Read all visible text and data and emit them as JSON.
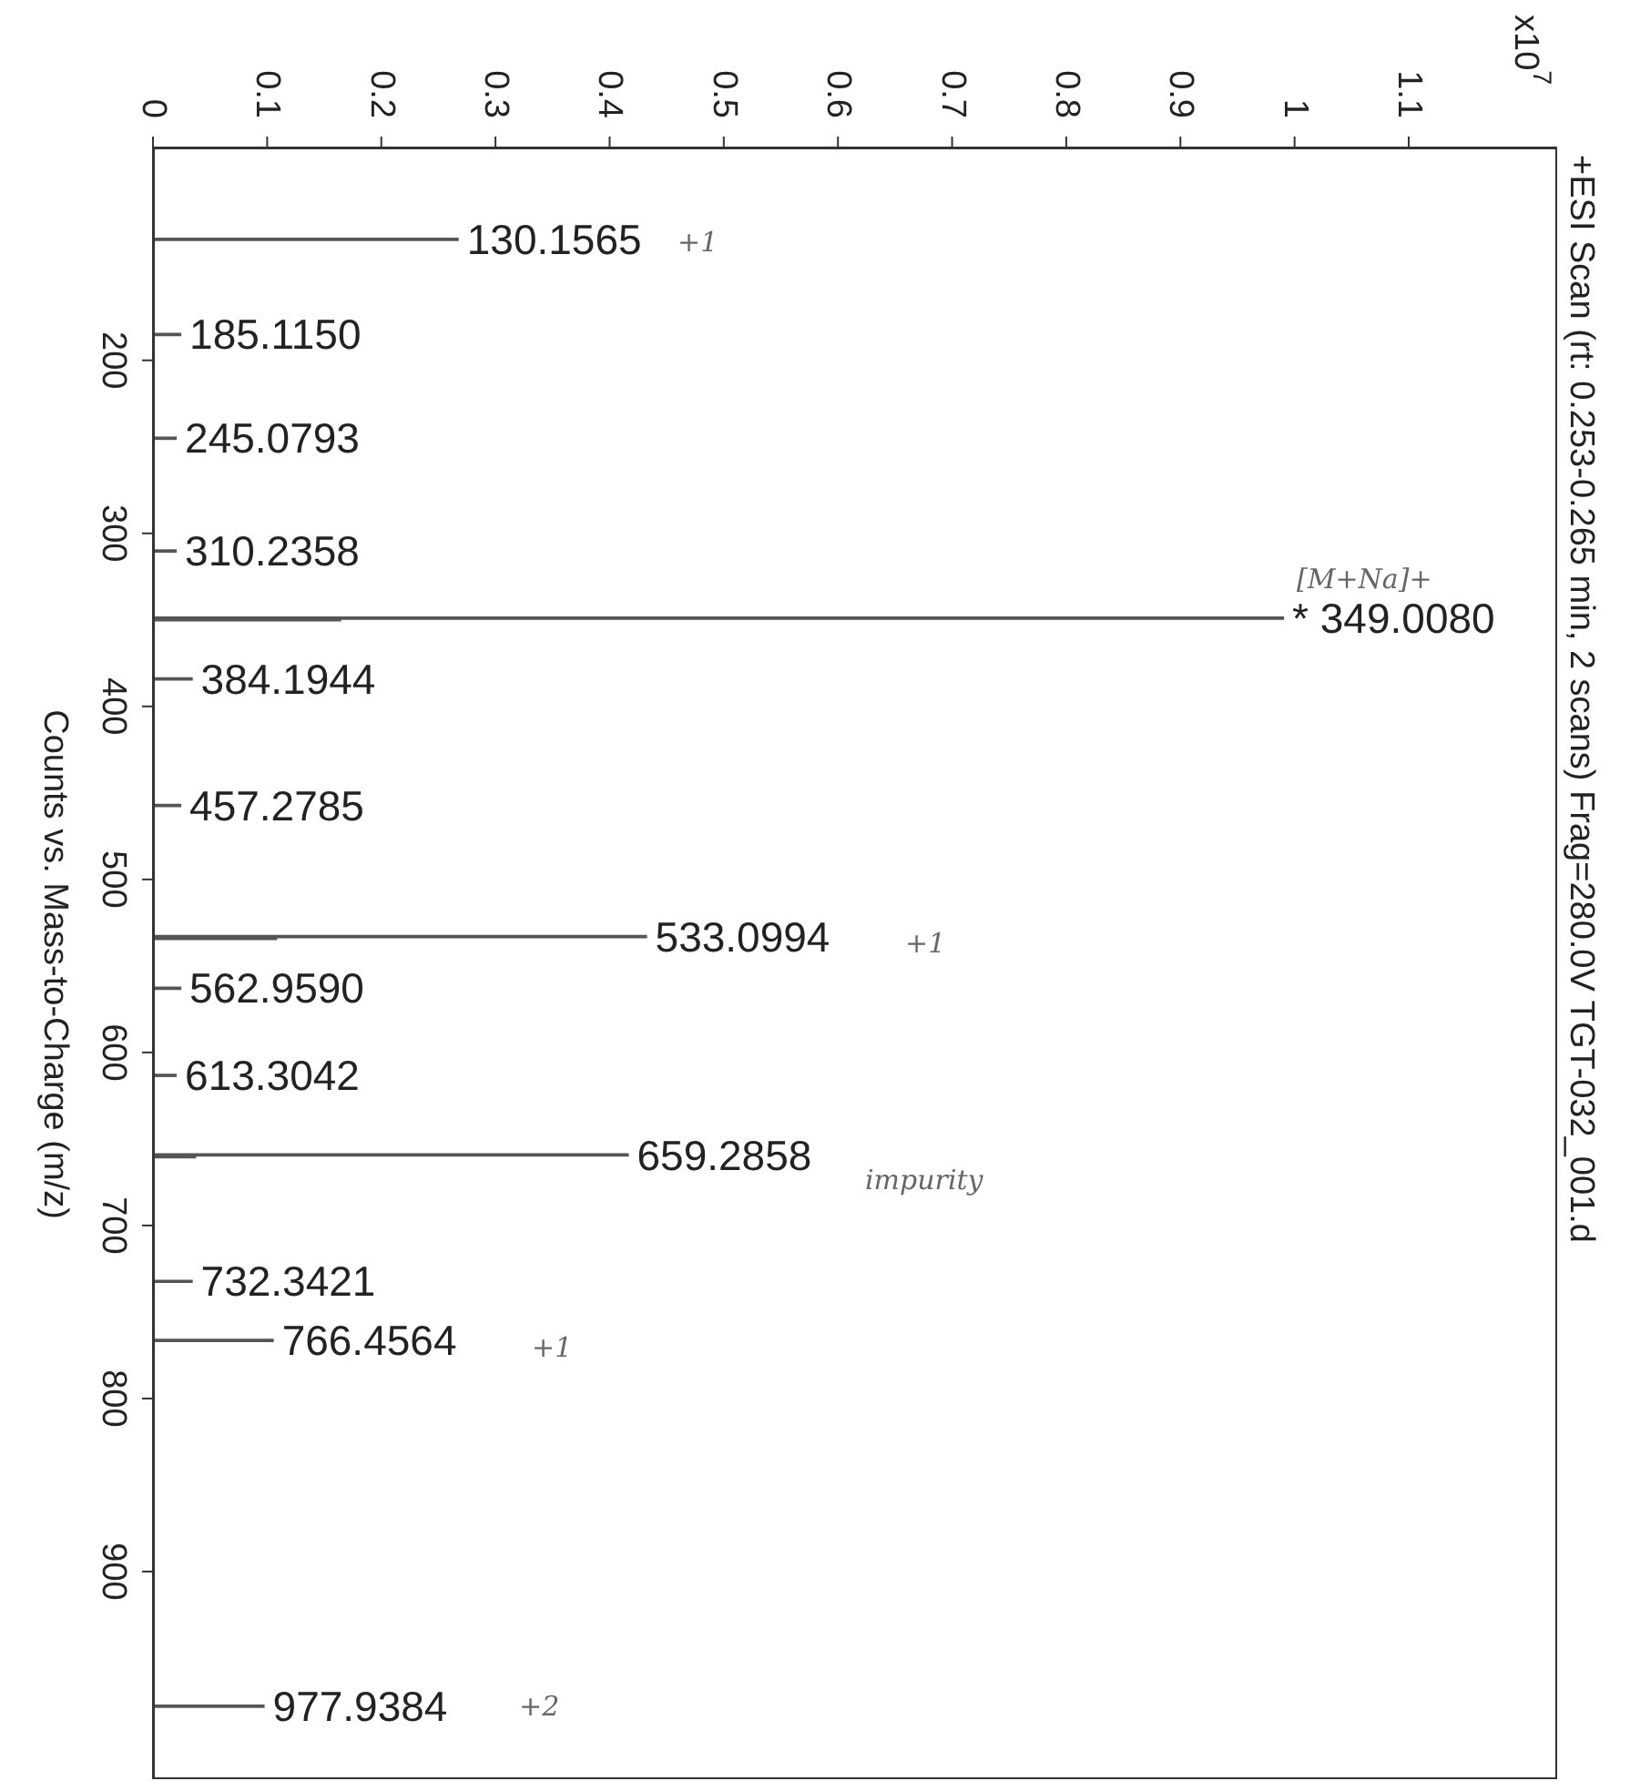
{
  "chart_data": {
    "type": "bar",
    "orientation": "horizontal",
    "title": "+ESI Scan (rt: 0.253-0.265 min, 2 scans) Frag=280.0V TGT-032_001.d",
    "ylabel": "Counts vs. Mass-to-Charge (m/z)",
    "x": [
      130.1565,
      185.115,
      245.0793,
      310.2358,
      349.008,
      350.01,
      384.1944,
      457.2785,
      533.0994,
      534.1,
      562.959,
      613.3042,
      659.2858,
      660.29,
      732.3421,
      766.4564,
      977.9384
    ],
    "values": [
      0.267,
      0.024,
      0.02,
      0.02,
      0.99,
      0.164,
      0.034,
      0.024,
      0.432,
      0.108,
      0.024,
      0.02,
      0.416,
      0.037,
      0.034,
      0.105,
      0.097
    ],
    "color": "#555555",
    "ylim": [
      1020,
      77
    ],
    "yticks": [
      200,
      300,
      400,
      500,
      600,
      700,
      800,
      900
    ],
    "xlim": [
      0,
      1.23
    ],
    "xticks": [
      0,
      0.1,
      0.2,
      0.3,
      0.4,
      0.5,
      0.6,
      0.7,
      0.8,
      0.9,
      1,
      1.1
    ],
    "annotations": [
      {
        "text": "130.1565",
        "x": 0.267,
        "y": 130.1565
      },
      {
        "text": "185.1150",
        "x": 0.024,
        "y": 185.115
      },
      {
        "text": "245.0793",
        "x": 0.02,
        "y": 245.0793
      },
      {
        "text": "310.2358",
        "x": 0.02,
        "y": 310.2358
      },
      {
        "text": "* 349.0080",
        "x": 0.99,
        "y": 349.008
      },
      {
        "text": "384.1944",
        "x": 0.034,
        "y": 384.1944
      },
      {
        "text": "457.2785",
        "x": 0.024,
        "y": 457.2785
      },
      {
        "text": "533.0994",
        "x": 0.432,
        "y": 533.0994
      },
      {
        "text": "562.9590",
        "x": 0.024,
        "y": 562.959
      },
      {
        "text": "613.3042",
        "x": 0.02,
        "y": 613.3042
      },
      {
        "text": "659.2858",
        "x": 0.416,
        "y": 659.2858
      },
      {
        "text": "732.3421",
        "x": 0.034,
        "y": 732.3421
      },
      {
        "text": "766.4564",
        "x": 0.105,
        "y": 766.4564
      },
      {
        "text": "977.9384",
        "x": 0.097,
        "y": 977.9384
      },
      "x10$^{7}$",
      "+1",
      "[M+Na]+",
      "+1",
      "impurity",
      "+1",
      "+2"
    ],
    "grid": false,
    "legend": false
  }
}
